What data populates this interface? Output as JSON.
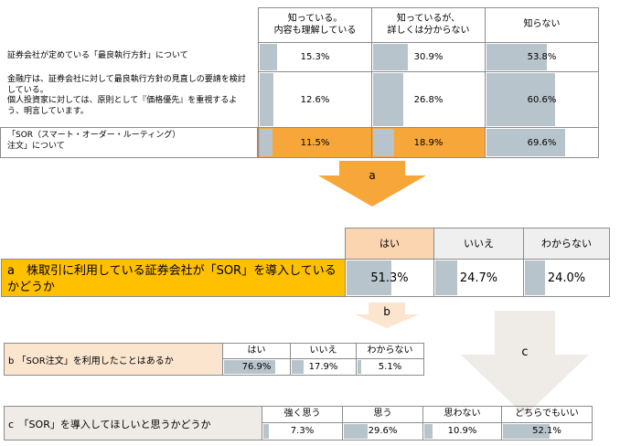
{
  "chart_data": [
    {
      "type": "table",
      "columns": [
        "知っている。\n内容も理解している",
        "知っているが、\n詳しくは分からない",
        "知らない"
      ],
      "rows": [
        {
          "label": "証券会社が定めている「最良執行方針」について",
          "values": [
            15.3,
            30.9,
            53.8
          ],
          "display": [
            "15.3%",
            "30.9%",
            "53.8%"
          ]
        },
        {
          "label": "金融庁は、証券会社に対して最良執行方針の見直しの要請を検討している。\n個人投資家に対しては、原則として『価格優先』を重視するよう、明言しています。",
          "values": [
            12.6,
            26.8,
            60.6
          ],
          "display": [
            "12.6%",
            "26.8%",
            "60.6%"
          ]
        },
        {
          "label": "「SOR（スマート・オーダー・ルーティング）\n注文」について",
          "values": [
            11.5,
            18.9,
            69.6
          ],
          "display": [
            "11.5%",
            "18.9%",
            "69.6%"
          ],
          "highlight": true
        }
      ]
    },
    {
      "type": "table",
      "label": "a　株取引に利用している証券会社が「SOR」を導入しているかどうか",
      "columns": [
        "はい",
        "いいえ",
        "わからない"
      ],
      "values": [
        51.3,
        24.7,
        24.0
      ],
      "display": [
        "51.3%",
        "24.7%",
        "24.0%"
      ]
    },
    {
      "type": "table",
      "label": "b 「SOR注文」を利用したことはあるか",
      "columns": [
        "はい",
        "いいえ",
        "わからない"
      ],
      "values": [
        76.9,
        17.9,
        5.1
      ],
      "display": [
        "76.9%",
        "17.9%",
        "5.1%"
      ]
    },
    {
      "type": "table",
      "label": "c　「SOR」を導入してほしいと思うかどうか",
      "columns": [
        "強く思う",
        "思う",
        "思わない",
        "どちらでもいい"
      ],
      "values": [
        7.3,
        29.6,
        10.9,
        52.1
      ],
      "display": [
        "7.3%",
        "29.6%",
        "10.9%",
        "52.1%"
      ]
    }
  ],
  "arrows": {
    "a": "a",
    "b": "b",
    "c": "c"
  },
  "colors": {
    "orange": "#f7a63a",
    "bar": "#b8c4cc",
    "peach": "#fbe5cf",
    "gold": "#ffc000",
    "pale_grey": "#efebe6",
    "header_orange": "#fbd5b0",
    "header_grey": "#efefef"
  }
}
